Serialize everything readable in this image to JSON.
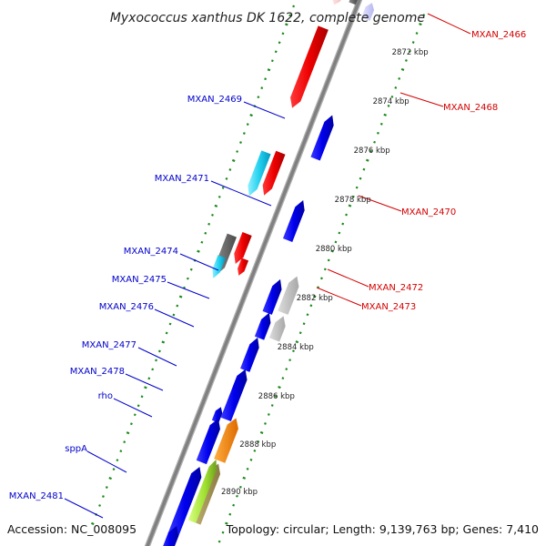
{
  "title": "Myxococcus xanthus DK 1622, complete genome",
  "footer": {
    "accession": "Accession: NC_008095",
    "topology": "Topology: circular; Length: 9,139,763 bp; Genes: 7,410"
  },
  "colors": {
    "forward_label": "#d40000",
    "reverse_label": "#0000cc",
    "backbone": "#808080",
    "tick": "#1a8a1a"
  },
  "kbp_labels": [
    "2872 kbp",
    "2874 kbp",
    "2876 kbp",
    "2878 kbp",
    "2880 kbp",
    "2882 kbp",
    "2884 kbp",
    "2886 kbp",
    "2888 kbp",
    "2890 kbp"
  ],
  "gene_labels": {
    "forward": [
      "MXAN_2466",
      "MXAN_2468",
      "MXAN_2470",
      "MXAN_2472",
      "MXAN_2473"
    ],
    "reverse": [
      "MXAN_2469",
      "MXAN_2471",
      "MXAN_2474",
      "MXAN_2475",
      "MXAN_2476",
      "MXAN_2477",
      "MXAN_2478",
      "rho",
      "sppA",
      "MXAN_2481"
    ]
  }
}
